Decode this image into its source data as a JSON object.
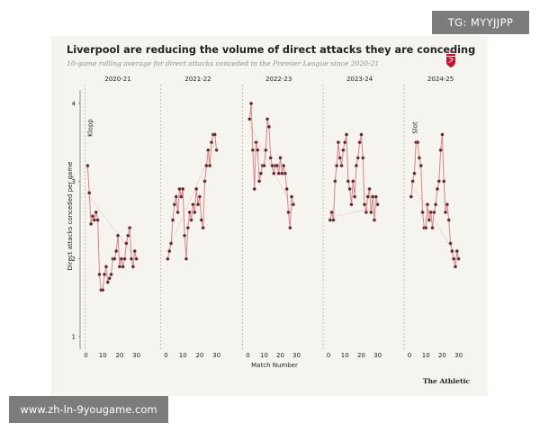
{
  "watermarks": {
    "top_right": "TG: MYYJJPP",
    "bottom_left": "www.zh-ln-9yougame.com"
  },
  "source": "The Athletic",
  "colors": {
    "background": "#f5f4ef",
    "line": "#d98585",
    "marker_fill": "#4a2a2e",
    "trend": "#e6b2b2",
    "separator": "#999999"
  },
  "chart_data": {
    "type": "line",
    "title": "Liverpool are reducing the volume of direct attacks they are conceding",
    "subtitle": "10-game rolling average for direct attacks conceded in the Premier League since 2020-21",
    "xlabel": "Match Number",
    "ylabel": "Direct attacks conceded per game",
    "ylim": [
      1,
      4
    ],
    "yticks": [
      1,
      2,
      3,
      4
    ],
    "xlim": [
      0,
      38
    ],
    "xticks": [
      0,
      10,
      20,
      30
    ],
    "grid": false,
    "legend": "none",
    "annotations": [
      {
        "panel": "2020-21",
        "text": "Klopp"
      },
      {
        "panel": "2024-25",
        "text": "Slot"
      }
    ],
    "series": [
      {
        "name": "2020-21",
        "x": [
          1,
          2,
          3,
          4,
          5,
          6,
          7,
          8,
          9,
          10,
          11,
          12,
          13,
          14,
          15,
          16,
          17,
          18,
          19,
          20,
          21,
          22,
          23,
          24,
          25,
          26,
          27,
          28,
          29,
          30
        ],
        "values": [
          3.2,
          2.85,
          2.45,
          2.55,
          2.5,
          2.6,
          2.5,
          1.8,
          1.6,
          1.6,
          1.8,
          1.9,
          1.7,
          1.75,
          1.8,
          2.0,
          2.0,
          2.1,
          2.3,
          1.9,
          2.0,
          1.9,
          2.0,
          2.2,
          2.3,
          2.4,
          2.0,
          1.9,
          2.1,
          2.0
        ]
      },
      {
        "name": "2021-22",
        "x": [
          1,
          2,
          3,
          4,
          5,
          6,
          7,
          8,
          9,
          10,
          11,
          12,
          13,
          14,
          15,
          16,
          17,
          18,
          19,
          20,
          21,
          22,
          23,
          24,
          25,
          26,
          27,
          28,
          29,
          30
        ],
        "values": [
          2.0,
          2.1,
          2.2,
          2.5,
          2.7,
          2.8,
          2.6,
          2.9,
          2.8,
          2.9,
          2.3,
          2.0,
          2.4,
          2.6,
          2.5,
          2.7,
          2.6,
          2.9,
          2.7,
          2.8,
          2.5,
          2.4,
          3.0,
          3.2,
          3.4,
          3.2,
          3.5,
          3.6,
          3.6,
          3.4
        ]
      },
      {
        "name": "2022-23",
        "x": [
          1,
          2,
          3,
          4,
          5,
          6,
          7,
          8,
          9,
          10,
          11,
          12,
          13,
          14,
          15,
          16,
          17,
          18,
          19,
          20,
          21,
          22,
          23,
          24,
          25,
          26,
          27,
          28
        ],
        "values": [
          3.8,
          4.0,
          3.4,
          2.9,
          3.5,
          3.4,
          3.0,
          3.1,
          3.2,
          3.2,
          3.4,
          3.8,
          3.7,
          3.3,
          3.2,
          3.1,
          3.2,
          3.2,
          3.1,
          3.3,
          3.1,
          3.2,
          3.1,
          2.9,
          2.6,
          2.4,
          2.8,
          2.7
        ]
      },
      {
        "name": "2023-24",
        "x": [
          1,
          2,
          3,
          4,
          5,
          6,
          7,
          8,
          9,
          10,
          11,
          12,
          13,
          14,
          15,
          16,
          17,
          18,
          19,
          20,
          21,
          22,
          23,
          24,
          25,
          26,
          27,
          28,
          29,
          30
        ],
        "values": [
          2.5,
          2.6,
          2.5,
          3.0,
          3.2,
          3.5,
          3.3,
          3.2,
          3.4,
          3.5,
          3.6,
          3.0,
          2.9,
          2.7,
          3.0,
          2.8,
          3.2,
          3.3,
          3.5,
          3.6,
          3.3,
          2.7,
          2.6,
          2.8,
          2.9,
          2.6,
          2.8,
          2.5,
          2.8,
          2.7
        ]
      },
      {
        "name": "2024-25",
        "x": [
          1,
          2,
          3,
          4,
          5,
          6,
          7,
          8,
          9,
          10,
          11,
          12,
          13,
          14,
          15,
          16,
          17,
          18,
          19,
          20,
          21,
          22,
          23,
          24,
          25,
          26,
          27,
          28,
          29,
          30
        ],
        "values": [
          2.8,
          3.0,
          3.1,
          3.5,
          3.5,
          3.3,
          3.2,
          2.6,
          2.4,
          2.4,
          2.7,
          2.5,
          2.6,
          2.4,
          2.6,
          2.7,
          2.9,
          3.0,
          3.4,
          3.6,
          3.0,
          2.6,
          2.7,
          2.5,
          2.2,
          2.1,
          2.0,
          1.9,
          2.1,
          2.0
        ]
      }
    ]
  }
}
